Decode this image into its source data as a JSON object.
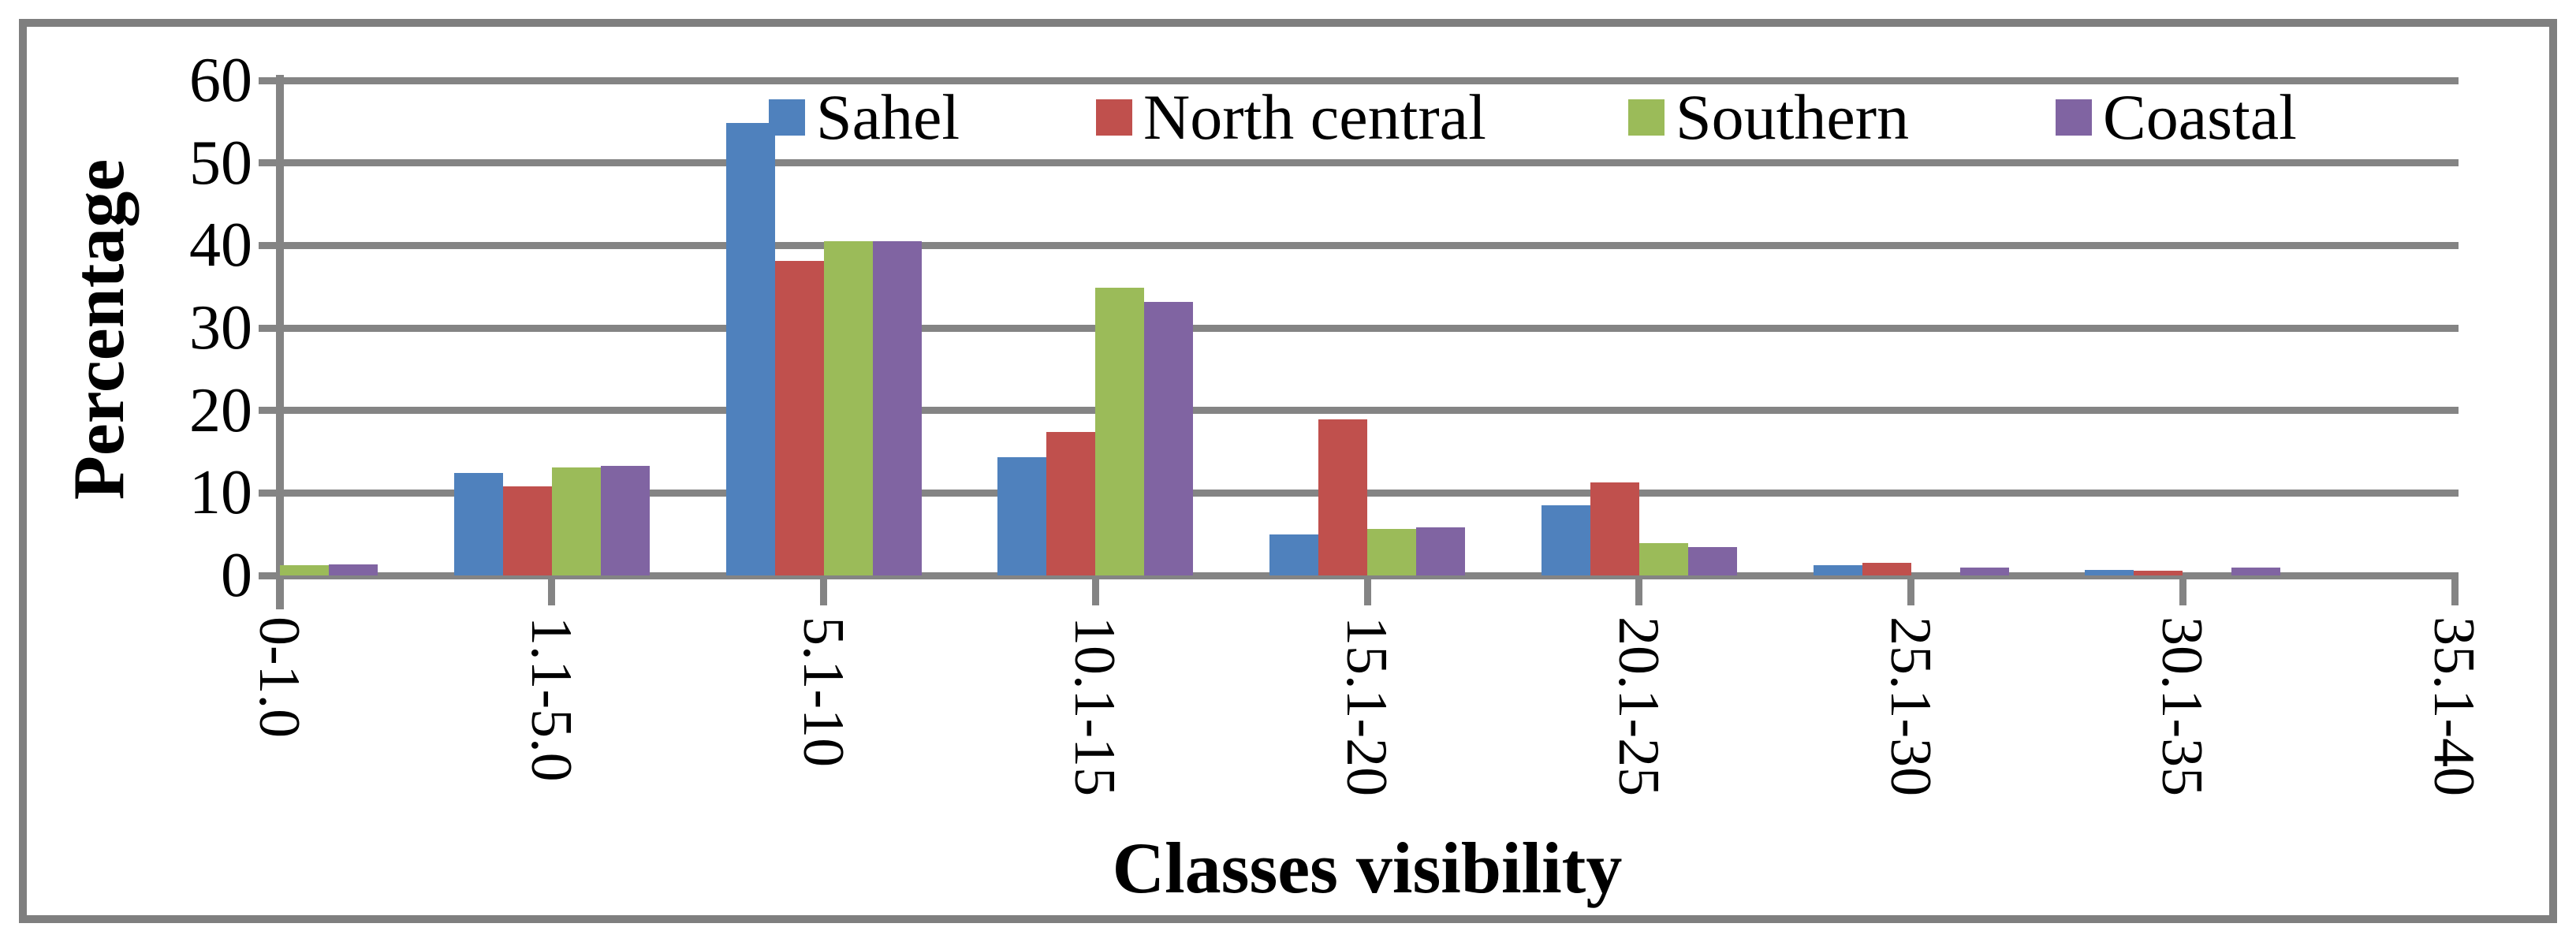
{
  "chart_data": {
    "type": "bar",
    "title": "",
    "xlabel": "Classes visibility",
    "ylabel": "Percentage",
    "categories": [
      "0-1.0",
      "1.1-5.0",
      "5.1-10",
      "10.1-15",
      "15.1-20",
      "20.1-25",
      "25.1-30",
      "30.1-35",
      "35.1-40"
    ],
    "series": [
      {
        "name": "Sahel",
        "color": "#4F81BD",
        "values": [
          0,
          12.4,
          54.8,
          14.3,
          5.0,
          8.5,
          1.2,
          0.7,
          0
        ]
      },
      {
        "name": "North central",
        "color": "#C0504D",
        "values": [
          0,
          10.8,
          38.1,
          17.4,
          18.9,
          11.3,
          1.5,
          0.6,
          0
        ]
      },
      {
        "name": "Southern",
        "color": "#9BBB59",
        "values": [
          1.2,
          13.1,
          40.5,
          34.9,
          5.6,
          3.9,
          0,
          0,
          0
        ]
      },
      {
        "name": "Coastal",
        "color": "#8064A2",
        "values": [
          1.3,
          13.3,
          40.5,
          33.2,
          5.8,
          3.4,
          1.0,
          1.0,
          0
        ]
      }
    ],
    "ylim": [
      0,
      60
    ],
    "yticks": [
      0,
      10,
      20,
      30,
      40,
      50,
      60
    ],
    "grid": true,
    "legend_position": "top-inside",
    "axis_color": "#848484",
    "frame_color": "#7F7F7F",
    "background_color": "#FFFFFF"
  }
}
